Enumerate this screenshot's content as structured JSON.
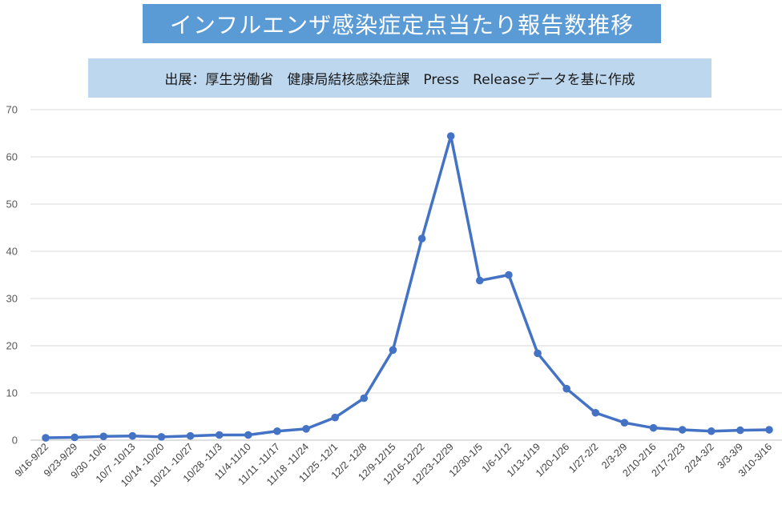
{
  "header": {
    "title": "インフルエンザ感染症定点当たり報告数推移",
    "subtitle": "出展：厚生労働省　健康局結核感染症課　Press　Releaseデータを基に作成"
  },
  "colors": {
    "title_bg": "#5b9bd5",
    "subtitle_bg": "#bdd7ee",
    "series": "#4472c4",
    "grid": "#d9d9d9"
  },
  "chart_data": {
    "type": "line",
    "title": "インフルエンザ感染症定点当たり報告数推移",
    "subtitle": "出展：厚生労働省　健康局結核感染症課　Press　Releaseデータを基に作成",
    "xlabel": "",
    "ylabel": "",
    "ylim": [
      0,
      70
    ],
    "yticks": [
      0,
      10,
      20,
      30,
      40,
      50,
      60,
      70
    ],
    "grid": true,
    "categories": [
      "9/16-9/22",
      "9/23-9/29",
      "9/30 -10/6",
      "10/7 -10/13",
      "10/14 -10/20",
      "10/21 -10/27",
      "10/28 -11/3",
      "11/4-11/10",
      "11/11 -11/17",
      "11/18 -11/24",
      "11/25 -12/1",
      "12/2 -12/8",
      "12/9-12/15",
      "12/16-12/22",
      "12/23-12/29",
      "12/30-1/5",
      "1/6-1/12",
      "1/13-1/19",
      "1/20-1/26",
      "1/27-2/2",
      "2/3-2/9",
      "2/10-2/16",
      "2/17-2/23",
      "2/24-3/2",
      "3/3-3/9",
      "3/10-3/16"
    ],
    "series": [
      {
        "values": [
          0.5,
          0.6,
          0.8,
          0.9,
          0.7,
          0.9,
          1.1,
          1.1,
          1.9,
          2.4,
          4.8,
          8.9,
          19.1,
          42.7,
          64.4,
          33.8,
          35.0,
          18.4,
          10.9,
          5.8,
          3.7,
          2.6,
          2.2,
          1.9,
          2.1,
          2.2
        ]
      }
    ]
  }
}
